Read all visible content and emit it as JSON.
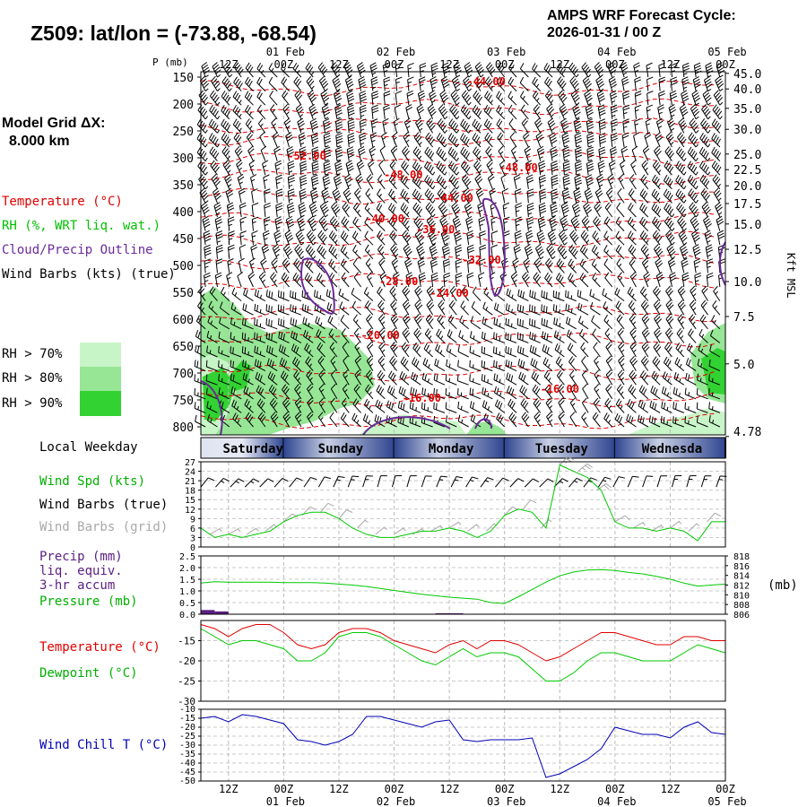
{
  "header": {
    "title": "Z509:  lat/lon = (-73.88, -68.54)",
    "cycle_line1": "AMPS WRF Forecast Cycle:",
    "cycle_line2": "2026-01-31 / 00  Z",
    "grid_label": "Model Grid ΔX:",
    "grid_value": "8.000 km"
  },
  "legend": {
    "temperature": "Temperature (°C)",
    "rh": "RH (%, WRT liq. wat.)",
    "cloud": "Cloud/Precip Outline",
    "wind_barbs": "Wind Barbs (kts) (true)",
    "rh70": "RH > 70%",
    "rh80": "RH > 80%",
    "rh90": "RH > 90%",
    "local_weekday": "Local Weekday",
    "wind_spd": "Wind Spd (kts)",
    "wind_barbs_true": "Wind Barbs (true)",
    "wind_barbs_grid": "Wind Barbs (grid)",
    "precip1": "Precip (mm)",
    "precip2": "liq. equiv.",
    "precip3": "3-hr accum",
    "pressure": "Pressure (mb)",
    "temperature2": "Temperature (°C)",
    "dewpoint": "Dewpoint (°C)",
    "windchill": "Wind Chill T (°C)",
    "mb_unit": "(mb)",
    "kft_msl": "Kft MSL"
  },
  "colors": {
    "temperature": "#e00000",
    "dewpoint": "#00c800",
    "cloud": "#6a2a9a",
    "windchill": "#0000b4",
    "rh70": "#c8f5c8",
    "rh80": "#96e696",
    "rh90": "#32d232",
    "grid_barbs": "#a8a8a8",
    "precip": "#5a1e82",
    "weekday_band": "#2f4590"
  },
  "time_axis": {
    "top_hours": [
      "12Z",
      "00Z",
      "12Z",
      "00Z",
      "12Z",
      "00Z",
      "12Z",
      "00Z",
      "12Z",
      "00Z"
    ],
    "top_dates": [
      "01 Feb",
      "02 Feb",
      "03 Feb",
      "04 Feb",
      "05 Feb"
    ],
    "bottom_hours": [
      "12Z",
      "00Z",
      "12Z",
      "00Z",
      "12Z",
      "00Z",
      "12Z",
      "00Z",
      "12Z",
      "00Z"
    ],
    "bottom_dates": [
      "01 Feb",
      "02 Feb",
      "03 Feb",
      "04 Feb",
      "05 Feb"
    ]
  },
  "weekdays": [
    "Saturday",
    "Sunday",
    "Monday",
    "Tuesday",
    "Wednesda"
  ],
  "chart_data": [
    {
      "type": "heatmap",
      "name": "cross-section",
      "xlabel": "",
      "ylabel": "P (mb)",
      "y2label": "Kft MSL",
      "x_hours": [
        6,
        120
      ],
      "ylim": [
        815,
        140
      ],
      "pressure_ticks": [
        "150",
        "200",
        "250",
        "300",
        "350",
        "400",
        "450",
        "500",
        "550",
        "600",
        "650",
        "700",
        "750",
        "800"
      ],
      "height_ticks": [
        "45.0",
        "40.0",
        "35.0",
        "30.0",
        "25.0",
        "22.5",
        "20.0",
        "17.5",
        "15.0",
        "12.5",
        "10.0",
        "7.5",
        "5.0",
        "4.78"
      ],
      "temperature_contours": [
        {
          "label": "-44.00",
          "x": 68,
          "p": 158
        },
        {
          "label": "-52.00",
          "x": 29,
          "p": 297
        },
        {
          "label": "-48.00",
          "x": 50,
          "p": 332
        },
        {
          "label": "-48.00",
          "x": 75,
          "p": 318
        },
        {
          "label": "-44.00",
          "x": 61,
          "p": 375
        },
        {
          "label": "-40.00",
          "x": 46,
          "p": 413
        },
        {
          "label": "-36.00",
          "x": 57,
          "p": 433
        },
        {
          "label": "-32.00",
          "x": 67,
          "p": 490
        },
        {
          "label": "-28.00",
          "x": 49,
          "p": 530
        },
        {
          "label": "-24.00",
          "x": 60,
          "p": 552
        },
        {
          "label": "-20.00",
          "x": 45,
          "p": 630
        },
        {
          "label": "-16.00",
          "x": 54,
          "p": 747
        },
        {
          "label": "-16.00",
          "x": 84,
          "p": 730
        }
      ]
    },
    {
      "type": "line",
      "name": "wind",
      "ylim": [
        0,
        27
      ],
      "yticks": [
        "0",
        "3",
        "6",
        "9",
        "12",
        "15",
        "18",
        "21",
        "24",
        "27"
      ],
      "x_hours": [
        6,
        9,
        12,
        15,
        18,
        21,
        24,
        27,
        30,
        33,
        36,
        39,
        42,
        45,
        48,
        51,
        54,
        57,
        60,
        63,
        66,
        69,
        72,
        75,
        78,
        81,
        84,
        87,
        90,
        93,
        96,
        99,
        102,
        105,
        108,
        111,
        114,
        117,
        120
      ],
      "series": [
        {
          "name": "Wind Spd (kts)",
          "values": [
            6,
            3,
            4,
            3,
            4,
            5,
            8,
            10,
            11,
            11,
            9,
            6,
            4,
            3,
            3,
            4,
            5,
            5,
            6,
            5,
            3,
            5,
            10,
            12,
            11,
            6,
            26,
            24,
            22,
            18,
            8,
            6,
            6,
            5,
            6,
            5,
            2,
            8,
            8
          ]
        }
      ]
    },
    {
      "type": "line",
      "name": "precip-pressure",
      "ylim": [
        0,
        2.5
      ],
      "yticks": [
        "0.0",
        "0.5",
        "1.0",
        "1.5",
        "2.0",
        "2.5"
      ],
      "y2lim": [
        806,
        818
      ],
      "y2ticks": [
        "806",
        "808",
        "810",
        "812",
        "814",
        "816",
        "818"
      ],
      "x_hours": [
        6,
        9,
        12,
        15,
        18,
        21,
        24,
        27,
        30,
        33,
        36,
        39,
        42,
        45,
        48,
        51,
        54,
        57,
        60,
        63,
        66,
        69,
        72,
        75,
        78,
        81,
        84,
        87,
        90,
        93,
        96,
        99,
        102,
        105,
        108,
        111,
        114,
        117,
        120
      ],
      "series": [
        {
          "name": "Pressure (mb)",
          "values": [
            812.4,
            812.7,
            812.6,
            812.6,
            812.6,
            812.6,
            812.5,
            812.5,
            812.5,
            812.4,
            812.2,
            812.0,
            811.7,
            811.3,
            810.9,
            810.5,
            810.1,
            809.8,
            809.5,
            809.3,
            809.1,
            808.4,
            808.2,
            809.6,
            811.1,
            812.6,
            813.9,
            814.7,
            815.1,
            815.2,
            815.0,
            814.6,
            814.3,
            813.8,
            813.2,
            812.4,
            811.8,
            812.0,
            812.2
          ]
        },
        {
          "name": "Precip (mm)",
          "values": [
            0.18,
            0.12,
            0,
            0,
            0,
            0,
            0,
            0,
            0,
            0,
            0,
            0,
            0,
            0,
            0,
            0,
            0,
            0.04,
            0.04,
            0,
            0,
            0,
            0,
            0,
            0,
            0,
            0,
            0,
            0,
            0,
            0,
            0,
            0,
            0,
            0,
            0,
            0,
            0,
            0
          ]
        }
      ]
    },
    {
      "type": "line",
      "name": "temperature",
      "ylim": [
        -30,
        -10
      ],
      "yticks": [
        "-15",
        "-20",
        "-25",
        "-30"
      ],
      "x_hours": [
        6,
        9,
        12,
        15,
        18,
        21,
        24,
        27,
        30,
        33,
        36,
        39,
        42,
        45,
        48,
        51,
        54,
        57,
        60,
        63,
        66,
        69,
        72,
        75,
        78,
        81,
        84,
        87,
        90,
        93,
        96,
        99,
        102,
        105,
        108,
        111,
        114,
        117,
        120
      ],
      "series": [
        {
          "name": "Temperature",
          "values": [
            -11,
            -12,
            -14,
            -12,
            -11,
            -11,
            -13,
            -16,
            -17,
            -16,
            -13,
            -12,
            -12,
            -13,
            -15,
            -16,
            -17,
            -18,
            -16,
            -15,
            -17,
            -15,
            -15,
            -16,
            -18,
            -20,
            -19,
            -17,
            -15,
            -13,
            -13,
            -14,
            -15,
            -16,
            -16,
            -14,
            -14,
            -15,
            -15
          ]
        },
        {
          "name": "Dewpoint",
          "values": [
            -12,
            -14,
            -16,
            -15,
            -15,
            -16,
            -17,
            -20,
            -20,
            -18,
            -14,
            -13,
            -13,
            -14,
            -16,
            -18,
            -20,
            -21,
            -19,
            -17,
            -19,
            -18,
            -18,
            -19,
            -22,
            -25,
            -25,
            -23,
            -20,
            -18,
            -18,
            -19,
            -20,
            -20,
            -20,
            -18,
            -16,
            -17,
            -18
          ]
        }
      ]
    },
    {
      "type": "line",
      "name": "windchill",
      "ylim": [
        -50,
        -10
      ],
      "yticks": [
        "-10",
        "-15",
        "-20",
        "-25",
        "-30",
        "-35",
        "-40",
        "-45",
        "-50"
      ],
      "x_hours": [
        6,
        9,
        12,
        15,
        18,
        21,
        24,
        27,
        30,
        33,
        36,
        39,
        42,
        45,
        48,
        51,
        54,
        57,
        60,
        63,
        66,
        69,
        72,
        75,
        78,
        81,
        84,
        87,
        90,
        93,
        96,
        99,
        102,
        105,
        108,
        111,
        114,
        117,
        120
      ],
      "series": [
        {
          "name": "Wind Chill T",
          "values": [
            -15,
            -14,
            -17,
            -13,
            -14,
            -16,
            -18,
            -27,
            -28,
            -30,
            -28,
            -24,
            -14,
            -14,
            -16,
            -18,
            -20,
            -17,
            -16,
            -27,
            -28,
            -27,
            -27,
            -27,
            -26,
            -48,
            -46,
            -42,
            -38,
            -32,
            -20,
            -22,
            -24,
            -24,
            -26,
            -20,
            -17,
            -23,
            -24
          ]
        }
      ]
    }
  ]
}
